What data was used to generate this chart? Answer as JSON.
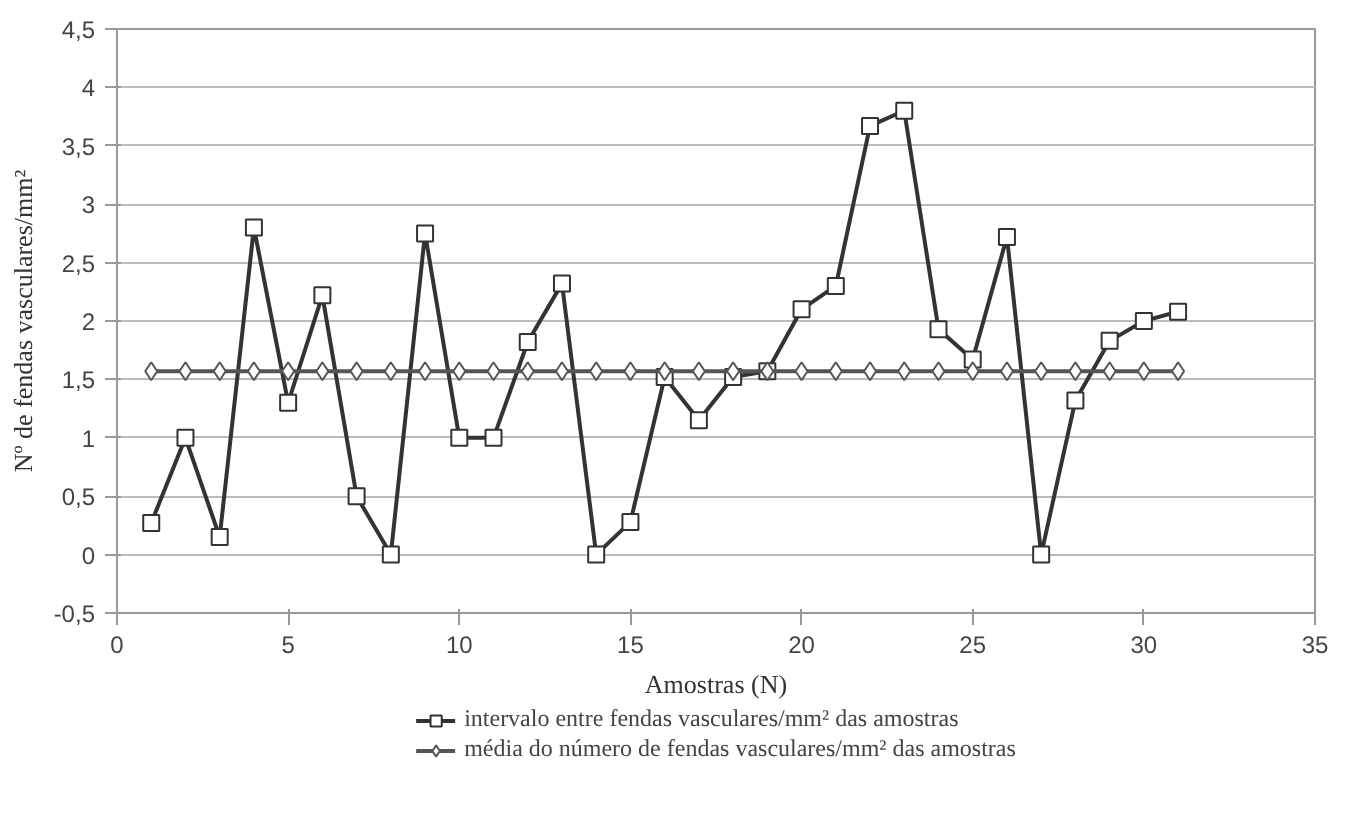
{
  "chart_data": {
    "type": "line",
    "xlabel": "Amostras (N)",
    "ylabel": "Nº de fendas vasculares/mm²",
    "xlim": [
      0,
      35
    ],
    "xticks": [
      0,
      5,
      10,
      15,
      20,
      25,
      30,
      35
    ],
    "ylim": [
      -0.5,
      4.5
    ],
    "yticks": [
      {
        "value": -0.5,
        "label": "-0,5"
      },
      0,
      {
        "value": 0.5,
        "label": "0,5"
      },
      1,
      {
        "value": 1.5,
        "label": "1,5"
      },
      2,
      {
        "value": 2.5,
        "label": "2,5"
      },
      3,
      {
        "value": 3.5,
        "label": "3,5"
      },
      4,
      {
        "value": 4.5,
        "label": "4,5"
      }
    ],
    "grid": "y",
    "legend": "bottom",
    "series": [
      {
        "name": "intervalo entre fendas vasculares/mm² das amostras",
        "color": "#333333",
        "marker": "square",
        "x": [
          1,
          2,
          3,
          4,
          5,
          6,
          7,
          8,
          9,
          10,
          11,
          12,
          13,
          14,
          15,
          16,
          17,
          18,
          19,
          20,
          21,
          22,
          23,
          24,
          25,
          26,
          27,
          28,
          29,
          30,
          31
        ],
        "values": [
          0.27,
          1.0,
          0.15,
          2.8,
          1.3,
          2.22,
          0.5,
          0,
          2.75,
          1.0,
          1.0,
          1.82,
          2.32,
          0,
          0.28,
          1.52,
          1.15,
          1.52,
          1.57,
          2.1,
          2.3,
          3.67,
          3.8,
          1.93,
          1.67,
          2.72,
          0,
          1.32,
          1.83,
          2.0,
          2.08
        ]
      },
      {
        "name": "média do número de fendas vasculares/mm² das amostras",
        "color": "#555555",
        "marker": "diamond",
        "x": [
          1,
          2,
          3,
          4,
          5,
          6,
          7,
          8,
          9,
          10,
          11,
          12,
          13,
          14,
          15,
          16,
          17,
          18,
          19,
          20,
          21,
          22,
          23,
          24,
          25,
          26,
          27,
          28,
          29,
          30,
          31
        ],
        "values": [
          1.57,
          1.57,
          1.57,
          1.57,
          1.57,
          1.57,
          1.57,
          1.57,
          1.57,
          1.57,
          1.57,
          1.57,
          1.57,
          1.57,
          1.57,
          1.57,
          1.57,
          1.57,
          1.57,
          1.57,
          1.57,
          1.57,
          1.57,
          1.57,
          1.57,
          1.57,
          1.57,
          1.57,
          1.57,
          1.57,
          1.57
        ]
      }
    ]
  }
}
